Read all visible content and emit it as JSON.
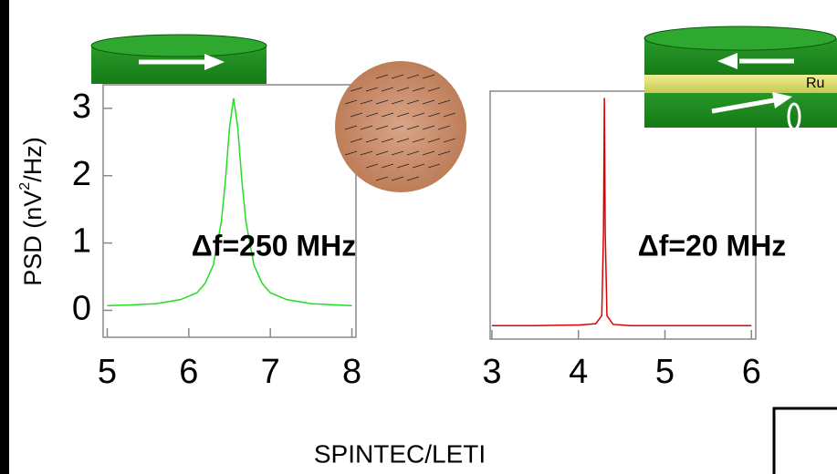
{
  "chart_data": [
    {
      "type": "line",
      "ylabel": "PSD (nV",
      "ylabel_sup": "2",
      "ylabel_end": "/Hz)",
      "annotation": "Δf=250 MHz",
      "xlim": [
        4.95,
        8.05
      ],
      "ylim": [
        -0.4,
        3.35
      ],
      "xticks": [
        5,
        6,
        7,
        8
      ],
      "yticks": [
        0,
        1,
        2,
        3
      ],
      "series": [
        {
          "color": "#22dd22",
          "x": [
            5.0,
            5.3,
            5.6,
            5.9,
            6.1,
            6.2,
            6.3,
            6.4,
            6.45,
            6.5,
            6.55,
            6.6,
            6.65,
            6.7,
            6.8,
            6.9,
            7.0,
            7.2,
            7.5,
            7.8,
            8.0
          ],
          "values": [
            0.07,
            0.08,
            0.1,
            0.16,
            0.26,
            0.4,
            0.67,
            1.32,
            1.94,
            2.72,
            3.15,
            2.72,
            1.94,
            1.32,
            0.67,
            0.4,
            0.26,
            0.16,
            0.1,
            0.08,
            0.07
          ]
        }
      ]
    },
    {
      "type": "line",
      "annotation": "Δf=20 MHz",
      "xlim": [
        2.98,
        6.05
      ],
      "ylim": [
        -0.4,
        3.3
      ],
      "xticks": [
        3,
        4,
        5,
        6
      ],
      "series": [
        {
          "color": "#dd0000",
          "x": [
            3.0,
            3.5,
            4.0,
            4.2,
            4.27,
            4.29,
            4.3,
            4.31,
            4.33,
            4.4,
            4.6,
            5.0,
            5.5,
            6.0
          ],
          "values": [
            -0.2,
            -0.2,
            -0.19,
            -0.17,
            -0.05,
            1.2,
            3.2,
            1.2,
            -0.05,
            -0.18,
            -0.2,
            -0.2,
            -0.2,
            -0.2
          ]
        }
      ]
    }
  ],
  "labels": {
    "ru": "Ru",
    "credit": "SPINTEC/LETI"
  }
}
